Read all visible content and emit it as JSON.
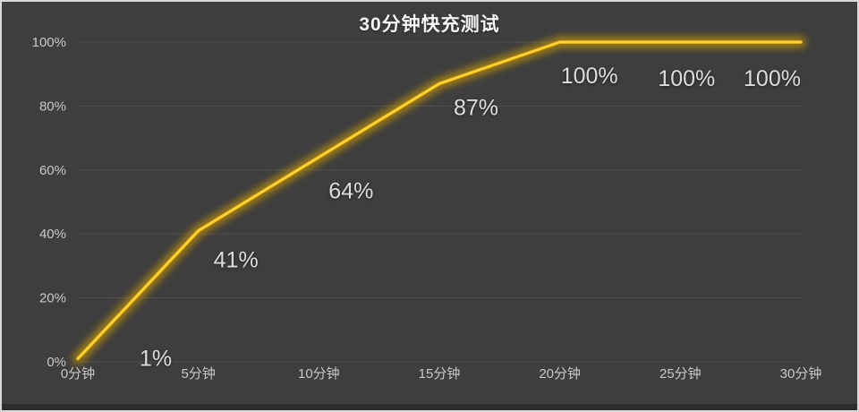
{
  "title": "30分钟快充测试",
  "chart_data": {
    "type": "line",
    "title": "30分钟快充测试",
    "categories": [
      "0分钟",
      "5分钟",
      "10分钟",
      "15分钟",
      "20分钟",
      "25分钟",
      "30分钟"
    ],
    "values": [
      1,
      41,
      64,
      87,
      100,
      100,
      100
    ],
    "data_labels": [
      "1%",
      "41%",
      "64%",
      "87%",
      "100%",
      "100%",
      "100%"
    ],
    "xlabel": "",
    "ylabel": "",
    "ylim": [
      0,
      100
    ],
    "yticks": [
      0,
      20,
      40,
      60,
      80,
      100
    ],
    "ytick_labels": [
      "0%",
      "20%",
      "40%",
      "60%",
      "80%",
      "100%"
    ],
    "grid": true,
    "legend": "none",
    "colors": {
      "background": "#3E3E3E",
      "gridline": "#4F4F4F",
      "tick_text": "#C8C8C8",
      "data_label_text": "#DCDCDC",
      "title_text": "#F7F7F7",
      "line_core": "#FFC211",
      "line_highlight": "#FFD94E",
      "line_glow": "#D9A400"
    }
  }
}
